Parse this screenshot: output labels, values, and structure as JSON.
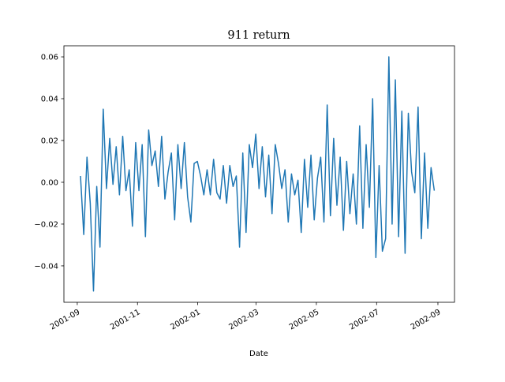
{
  "chart_data": {
    "type": "line",
    "title": "911 return",
    "xlabel": "Date",
    "x": [
      2001.675,
      2001.684,
      2001.693,
      2001.702,
      2001.711,
      2001.72,
      2001.729,
      2001.738,
      2001.747,
      2001.756,
      2001.765,
      2001.774,
      2001.783,
      2001.792,
      2001.801,
      2001.81,
      2001.819,
      2001.828,
      2001.837,
      2001.846,
      2001.855,
      2001.864,
      2001.873,
      2001.882,
      2001.891,
      2001.9,
      2001.909,
      2001.918,
      2001.927,
      2001.936,
      2001.945,
      2001.954,
      2001.963,
      2001.972,
      2001.981,
      2001.99,
      2001.999,
      2002.008,
      2002.017,
      2002.026,
      2002.035,
      2002.044,
      2002.053,
      2002.062,
      2002.071,
      2002.08,
      2002.089,
      2002.098,
      2002.107,
      2002.116,
      2002.125,
      2002.134,
      2002.143,
      2002.152,
      2002.161,
      2002.17,
      2002.179,
      2002.188,
      2002.197,
      2002.206,
      2002.215,
      2002.224,
      2002.233,
      2002.242,
      2002.251,
      2002.26,
      2002.269,
      2002.278,
      2002.287,
      2002.296,
      2002.305,
      2002.314,
      2002.323,
      2002.332,
      2002.341,
      2002.35,
      2002.359,
      2002.368,
      2002.377,
      2002.386,
      2002.395,
      2002.404,
      2002.413,
      2002.422,
      2002.431,
      2002.44,
      2002.449,
      2002.458,
      2002.467,
      2002.476,
      2002.485,
      2002.494,
      2002.503,
      2002.512,
      2002.521,
      2002.53,
      2002.539,
      2002.548,
      2002.557,
      2002.566,
      2002.575,
      2002.584,
      2002.593,
      2002.602,
      2002.611,
      2002.62,
      2002.629,
      2002.638,
      2002.647,
      2002.656
    ],
    "series": [
      {
        "name": "911 return",
        "color": "#1f77b4",
        "values": [
          0.003,
          -0.025,
          0.012,
          -0.01,
          -0.052,
          -0.002,
          -0.031,
          0.035,
          -0.003,
          0.021,
          -0.001,
          0.017,
          -0.006,
          0.022,
          -0.004,
          0.006,
          -0.021,
          0.019,
          -0.004,
          0.018,
          -0.026,
          0.025,
          0.008,
          0.015,
          -0.002,
          0.022,
          -0.008,
          0.005,
          0.014,
          -0.018,
          0.018,
          -0.003,
          0.019,
          -0.007,
          -0.019,
          0.009,
          0.01,
          0.003,
          -0.006,
          0.006,
          -0.006,
          0.011,
          -0.005,
          -0.008,
          0.008,
          -0.01,
          0.008,
          -0.002,
          0.003,
          -0.031,
          0.014,
          -0.024,
          0.018,
          0.007,
          0.023,
          -0.003,
          0.017,
          -0.007,
          0.013,
          -0.015,
          0.018,
          0.009,
          -0.003,
          0.006,
          -0.019,
          0.004,
          -0.006,
          0.001,
          -0.024,
          0.011,
          -0.012,
          0.013,
          -0.018,
          0.002,
          0.012,
          -0.019,
          0.037,
          -0.016,
          0.021,
          -0.011,
          0.012,
          -0.023,
          0.01,
          -0.015,
          0.004,
          -0.02,
          0.027,
          -0.022,
          0.018,
          -0.012,
          0.04,
          -0.036,
          0.008,
          -0.033,
          -0.027,
          0.06,
          -0.02,
          0.049,
          -0.026,
          0.034,
          -0.034,
          0.033,
          0.005,
          -0.005,
          0.036,
          -0.027,
          0.014,
          -0.022,
          0.007,
          -0.004
        ]
      }
    ],
    "xlim": [
      2001.629,
      2002.712
    ],
    "xticks": [
      {
        "value": 2001.666,
        "label": "2001-09"
      },
      {
        "value": 2001.833,
        "label": "2001-11"
      },
      {
        "value": 2002.0,
        "label": "2002-01"
      },
      {
        "value": 2002.162,
        "label": "2002-03"
      },
      {
        "value": 2002.329,
        "label": "2002-05"
      },
      {
        "value": 2002.496,
        "label": "2002-07"
      },
      {
        "value": 2002.666,
        "label": "2002-09"
      }
    ],
    "ylim": [
      -0.0574,
      0.0653
    ],
    "yticks": [
      {
        "value": -0.04,
        "label": "−0.04"
      },
      {
        "value": -0.02,
        "label": "−0.02"
      },
      {
        "value": 0,
        "label": "0.00"
      },
      {
        "value": 0.02,
        "label": "0.02"
      },
      {
        "value": 0.04,
        "label": "0.04"
      },
      {
        "value": 0.06,
        "label": "0.06"
      }
    ],
    "title_color": "#ff0000",
    "grid": false
  }
}
